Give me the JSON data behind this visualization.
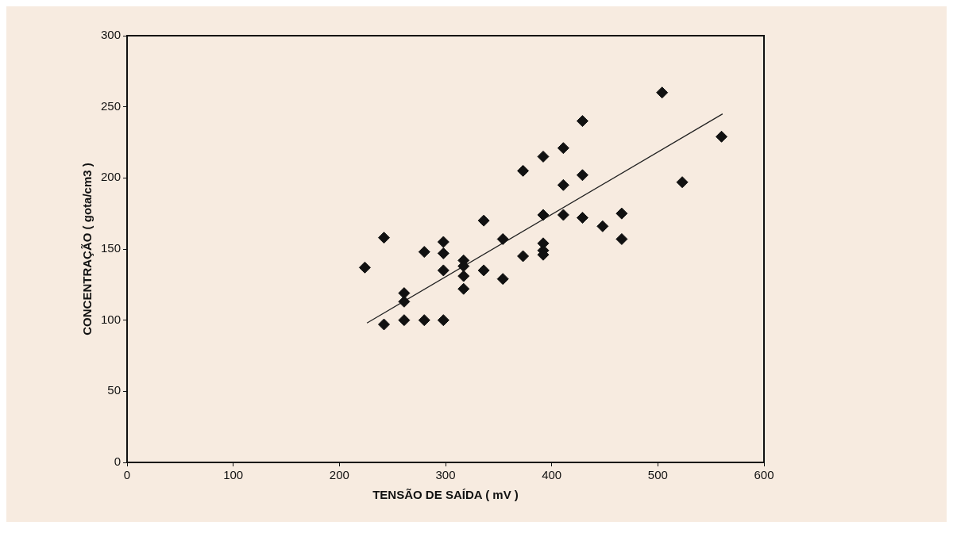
{
  "chart_data": {
    "type": "scatter",
    "xlabel": "TENSÃO DE SAÍDA ( mV )",
    "ylabel": "CONCENTRAÇÃO ( gota/cm3 )",
    "xlim": [
      0,
      600
    ],
    "xticks": [
      0,
      100,
      200,
      300,
      400,
      500,
      600
    ],
    "ylim": [
      0,
      300
    ],
    "yticks": [
      0,
      50,
      100,
      150,
      200,
      250,
      300
    ],
    "grid": false,
    "marker": "diamond",
    "legend": false,
    "series": [
      {
        "color": "#111111",
        "x": [
          224,
          242,
          242,
          261,
          261,
          261,
          280,
          280,
          298,
          298,
          298,
          298,
          317,
          317,
          317,
          317,
          336,
          336,
          354,
          354,
          373,
          373,
          392,
          392,
          392,
          392,
          392,
          411,
          411,
          411,
          429,
          429,
          429,
          448,
          466,
          466,
          504,
          523,
          560
        ],
        "values": [
          137,
          158,
          97,
          119,
          113,
          100,
          148,
          100,
          155,
          147,
          135,
          100,
          142,
          138,
          131,
          122,
          170,
          135,
          157,
          129,
          205,
          145,
          215,
          174,
          154,
          149,
          146,
          221,
          195,
          174,
          240,
          202,
          172,
          166,
          175,
          157,
          260,
          197,
          229
        ]
      },
      {
        "type": "line",
        "color": "#222222",
        "x": [
          226,
          561
        ],
        "values": [
          98,
          245
        ],
        "marker": "none",
        "line_style": "solid"
      }
    ]
  }
}
